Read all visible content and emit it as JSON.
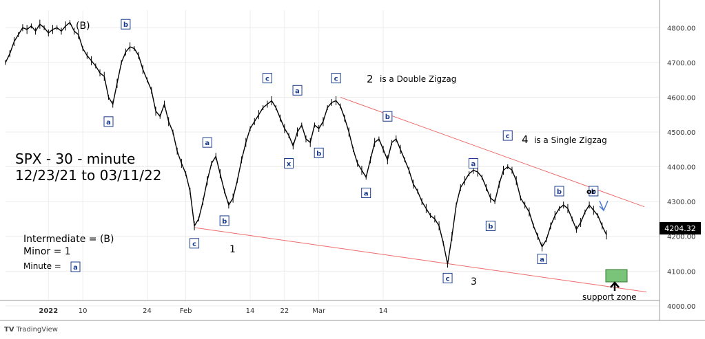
{
  "chart_data": {
    "type": "line",
    "symbol": "SPX",
    "ylim": [
      3970,
      4850
    ],
    "y_ticks": [
      4000,
      4100,
      4200,
      4300,
      4400,
      4500,
      4600,
      4700,
      4800
    ],
    "y_tick_labels": [
      "4000.00",
      "4100.00",
      "4200.00",
      "4300.00",
      "4400.00",
      "4500.00",
      "4600.00",
      "4700.00",
      "4800.00"
    ],
    "last_price": "4204.32",
    "x_tick_labels": [
      "2022",
      "10",
      "24",
      "Feb",
      "14",
      "22",
      "Mar",
      "14"
    ],
    "x_tick_idx": [
      10,
      18,
      33,
      42,
      57,
      65,
      73,
      88
    ],
    "grid": true,
    "series": [
      {
        "values": [
          4700,
          4725,
          4760,
          4780,
          4800,
          4795,
          4805,
          4790,
          4810,
          4800,
          4785,
          4795,
          4800,
          4790,
          4805,
          4815,
          4790,
          4780,
          4740,
          4720,
          4705,
          4690,
          4670,
          4660,
          4600,
          4580,
          4640,
          4700,
          4730,
          4745,
          4740,
          4720,
          4680,
          4650,
          4620,
          4560,
          4545,
          4580,
          4530,
          4500,
          4445,
          4410,
          4380,
          4330,
          4230,
          4250,
          4300,
          4360,
          4410,
          4430,
          4380,
          4330,
          4290,
          4310,
          4360,
          4420,
          4470,
          4510,
          4530,
          4550,
          4570,
          4580,
          4590,
          4570,
          4540,
          4510,
          4490,
          4460,
          4500,
          4520,
          4480,
          4470,
          4520,
          4510,
          4530,
          4570,
          4585,
          4590,
          4575,
          4540,
          4500,
          4450,
          4410,
          4390,
          4370,
          4420,
          4470,
          4480,
          4450,
          4420,
          4470,
          4480,
          4450,
          4420,
          4390,
          4350,
          4330,
          4300,
          4280,
          4260,
          4250,
          4230,
          4180,
          4120,
          4200,
          4290,
          4340,
          4360,
          4380,
          4390,
          4385,
          4370,
          4340,
          4310,
          4300,
          4350,
          4390,
          4400,
          4390,
          4360,
          4310,
          4290,
          4270,
          4230,
          4200,
          4170,
          4190,
          4230,
          4260,
          4280,
          4290,
          4280,
          4250,
          4220,
          4240,
          4270,
          4290,
          4275,
          4260,
          4230,
          4204.32
        ]
      }
    ],
    "annotations": {
      "title_line1": "SPX - 30 - minute",
      "title_line2": "12/23/21 to 03/11/22",
      "note_2": "2",
      "note_2_text": "is a Double Zigzag",
      "note_4": "4",
      "note_4_text": "is a Single Zigzag",
      "label_B": "(B)",
      "label_1": "1",
      "label_3": "3",
      "support": "support zone",
      "or": "or",
      "legend_intermediate": "Intermediate  = (B)",
      "legend_minor": "Minor = 1",
      "legend_minute": "Minute  =",
      "legend_minute_box": "a"
    },
    "wave_boxes": [
      {
        "t": "b",
        "i": 28,
        "v": 4810
      },
      {
        "t": "a",
        "i": 24,
        "v": 4530
      },
      {
        "t": "c",
        "i": 44,
        "v": 4180
      },
      {
        "t": "a",
        "i": 47,
        "v": 4470
      },
      {
        "t": "b",
        "i": 51,
        "v": 4245
      },
      {
        "t": "c",
        "i": 61,
        "v": 4655
      },
      {
        "t": "a",
        "i": 68,
        "v": 4620
      },
      {
        "t": "x",
        "i": 66,
        "v": 4410
      },
      {
        "t": "b",
        "i": 73,
        "v": 4440
      },
      {
        "t": "c",
        "i": 77,
        "v": 4655
      },
      {
        "t": "b",
        "i": 89,
        "v": 4545
      },
      {
        "t": "a",
        "i": 84,
        "v": 4325
      },
      {
        "t": "c",
        "i": 103,
        "v": 4080
      },
      {
        "t": "a",
        "i": 109,
        "v": 4410
      },
      {
        "t": "b",
        "i": 113,
        "v": 4230
      },
      {
        "t": "c",
        "i": 117,
        "v": 4490
      },
      {
        "t": "a",
        "i": 125,
        "v": 4135
      },
      {
        "t": "b",
        "i": 129,
        "v": 4330
      },
      {
        "t": "b",
        "i": 137,
        "v": 4330
      }
    ]
  }
}
